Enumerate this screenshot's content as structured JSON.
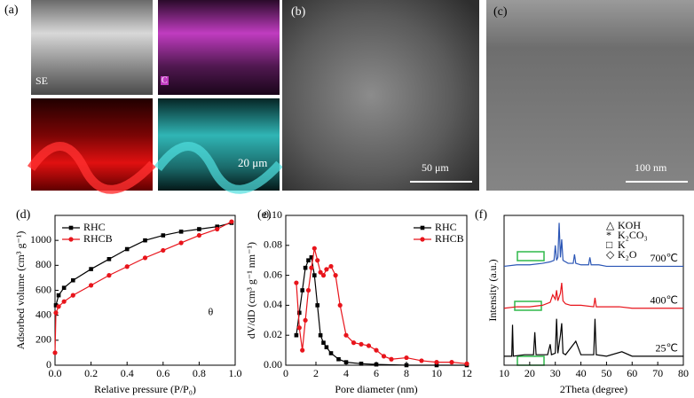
{
  "panels": [
    "(a)",
    "(b)",
    "(c)",
    "(d)",
    "(e)",
    "(f)"
  ],
  "images": {
    "se": "SE",
    "c": "C",
    "a_scale": "20 μm",
    "b_scale": "50 μm",
    "c_scale": "100 nm"
  },
  "chart_data": [
    {
      "type": "line",
      "xlabel": "Relative pressure (P/P₀)",
      "ylabel": "Adsorbed volume (cm³ g⁻¹)",
      "xlim": [
        0,
        1
      ],
      "xticks": [
        {
          "value": 0,
          "label": "0.0"
        },
        0.2,
        0.4,
        0.6,
        0.8,
        {
          "value": 1,
          "label": "1.0"
        }
      ],
      "ylim": [
        0,
        1200
      ],
      "yticks": [
        0,
        200,
        400,
        600,
        800,
        1000
      ],
      "legend": "upper left",
      "annotation": "θ",
      "series": [
        {
          "name": "RHC",
          "color": "#000000",
          "marker": "square",
          "x": [
            0.005,
            0.02,
            0.05,
            0.1,
            0.2,
            0.3,
            0.4,
            0.5,
            0.6,
            0.7,
            0.8,
            0.9,
            0.98
          ],
          "values": [
            480,
            560,
            620,
            680,
            770,
            850,
            930,
            1000,
            1040,
            1070,
            1090,
            1110,
            1140
          ]
        },
        {
          "name": "RHCB",
          "color": "#e8141b",
          "marker": "circle",
          "x": [
            0,
            0.005,
            0.02,
            0.05,
            0.1,
            0.2,
            0.3,
            0.4,
            0.5,
            0.6,
            0.7,
            0.8,
            0.9,
            0.98
          ],
          "values": [
            100,
            420,
            470,
            510,
            560,
            640,
            720,
            790,
            860,
            920,
            980,
            1040,
            1090,
            1150
          ]
        }
      ]
    },
    {
      "type": "line",
      "xlabel": "Pore diameter (nm)",
      "ylabel": "dV/dD (cm³ g⁻¹ nm⁻¹)",
      "xlim": [
        0,
        12
      ],
      "xticks": [
        0,
        2,
        4,
        6,
        8,
        10,
        12
      ],
      "ylim": [
        0,
        0.1
      ],
      "yticks": [
        {
          "value": 0,
          "label": "0.00"
        },
        0.02,
        0.04,
        0.06,
        0.08,
        {
          "value": 0.1,
          "label": "0.10"
        }
      ],
      "legend": "upper right",
      "series": [
        {
          "name": "RHC",
          "color": "#000000",
          "marker": "square",
          "x": [
            0.7,
            0.9,
            1.1,
            1.3,
            1.5,
            1.7,
            1.9,
            2.1,
            2.3,
            2.5,
            2.7,
            3.0,
            3.5,
            4,
            5,
            6,
            8,
            10,
            12
          ],
          "values": [
            0.02,
            0.035,
            0.05,
            0.065,
            0.07,
            0.072,
            0.06,
            0.04,
            0.02,
            0.015,
            0.012,
            0.008,
            0.004,
            0.002,
            0.001,
            0.0005,
            0,
            0,
            0
          ]
        },
        {
          "name": "RHCB",
          "color": "#e8141b",
          "marker": "circle",
          "x": [
            0.7,
            0.9,
            1.1,
            1.3,
            1.5,
            1.7,
            1.9,
            2.1,
            2.3,
            2.5,
            2.7,
            3.0,
            3.3,
            3.6,
            4,
            4.5,
            5,
            5.5,
            6,
            6.5,
            7,
            8,
            9,
            10,
            11,
            12
          ],
          "values": [
            0.055,
            0.025,
            0.01,
            0.03,
            0.05,
            0.065,
            0.078,
            0.07,
            0.062,
            0.06,
            0.064,
            0.066,
            0.06,
            0.04,
            0.02,
            0.015,
            0.014,
            0.013,
            0.01,
            0.006,
            0.004,
            0.005,
            0.003,
            0.002,
            0.002,
            0.001
          ]
        }
      ]
    },
    {
      "type": "line",
      "xlabel": "2Theta (degree)",
      "ylabel": "Intensity (a.u.)",
      "xlim": [
        10,
        80
      ],
      "xticks": [
        10,
        20,
        30,
        40,
        50,
        60,
        70,
        80
      ],
      "ylim": [
        0,
        100
      ],
      "legend_items": [
        "KOH",
        "K₂CO₃",
        "K",
        "K₂O"
      ],
      "series": [
        {
          "name": "700℃",
          "color": "#2a55b5",
          "x": [
            10,
            15,
            20,
            25,
            28,
            29.5,
            30,
            30.5,
            31,
            31.5,
            32,
            32.5,
            33,
            35,
            37,
            37.5,
            38,
            40,
            43,
            43.5,
            44,
            47,
            50,
            60,
            70,
            80
          ],
          "values": [
            66,
            67,
            67,
            68,
            69,
            70,
            80,
            70,
            72,
            95,
            72,
            84,
            70,
            68,
            68,
            74,
            68,
            67,
            67,
            72,
            67,
            67,
            66,
            66,
            66,
            66
          ]
        },
        {
          "name": "400℃",
          "color": "#e8141b",
          "x": [
            10,
            15,
            20,
            25,
            28,
            29,
            30,
            30.5,
            31,
            32,
            32.5,
            33,
            34,
            36,
            40,
            45,
            45.5,
            46,
            50,
            55,
            60,
            70,
            80
          ],
          "values": [
            38,
            39,
            39,
            40,
            42,
            47,
            44,
            50,
            43,
            48,
            55,
            43,
            41,
            40,
            40,
            39,
            45,
            39,
            39,
            39,
            38,
            38,
            38
          ]
        },
        {
          "name": "25℃",
          "color": "#000000",
          "x": [
            10,
            13,
            13.3,
            13.6,
            18,
            21.5,
            22,
            22.5,
            27,
            28,
            28.5,
            30,
            30.5,
            31,
            32,
            32.5,
            33,
            34,
            38,
            40,
            45,
            45.5,
            46,
            50,
            56,
            60,
            70,
            80
          ],
          "values": [
            6,
            6,
            27,
            6,
            7,
            7,
            22,
            7,
            7,
            14,
            7,
            8,
            31,
            8,
            20,
            28,
            8,
            7,
            16,
            7,
            7,
            31,
            7,
            6,
            9,
            6,
            6,
            6
          ]
        }
      ]
    }
  ]
}
